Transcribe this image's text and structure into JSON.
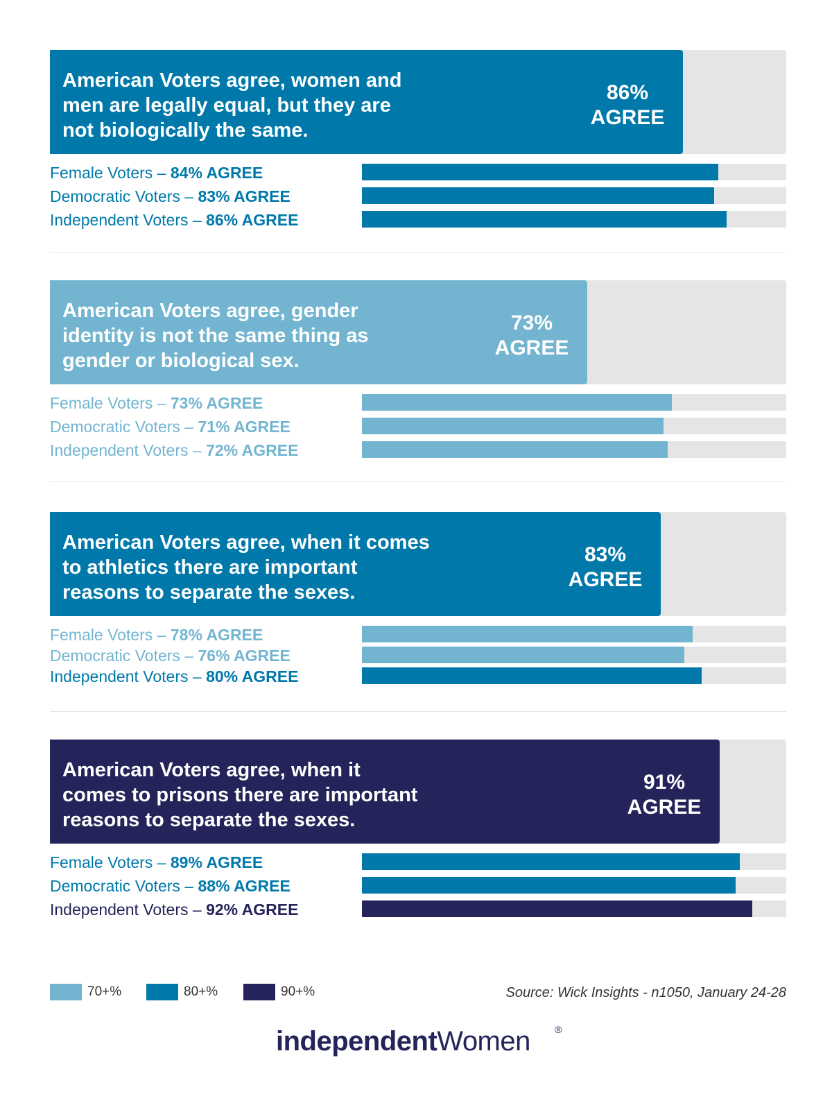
{
  "colors": {
    "70": "#73b5d0",
    "80": "#0079aa",
    "90": "#24245a",
    "track": "#e5e5e5"
  },
  "chart_data": {
    "type": "bar",
    "orientation": "horizontal",
    "xlim": [
      0,
      100
    ],
    "groups": [
      {
        "title": "American Voters agree, women and\nmen are legally equal, but they are\nnot biologically the same.",
        "value": 86,
        "label": "86%\nAGREE",
        "items": [
          {
            "name": "Female Voters",
            "sep": " – ",
            "pct_label": "84% AGREE",
            "value": 84
          },
          {
            "name": "Democratic Voters",
            "sep": " – ",
            "pct_label": "83% AGREE",
            "value": 83
          },
          {
            "name": "Independent Voters",
            "sep": " – ",
            "pct_label": "86% AGREE",
            "value": 86
          }
        ]
      },
      {
        "title": "American Voters agree, gender\nidentity is not the same thing as\ngender or biological sex.",
        "value": 73,
        "label": "73%\nAGREE",
        "items": [
          {
            "name": "Female Voters",
            "sep": " – ",
            "pct_label": "73% AGREE",
            "value": 73
          },
          {
            "name": "Democratic Voters",
            "sep": " – ",
            "pct_label": "71% AGREE",
            "value": 71
          },
          {
            "name": "Independent Voters",
            "sep": " – ",
            "pct_label": "72% AGREE",
            "value": 72
          }
        ]
      },
      {
        "title": "American Voters agree, when it comes\nto athletics there are important\nreasons to separate the sexes.",
        "value": 83,
        "label": "83%\nAGREE",
        "items": [
          {
            "name": "Female Voters",
            "sep": " – ",
            "pct_label": "78% AGREE",
            "value": 78
          },
          {
            "name": "Democratic Voters",
            "sep": " – ",
            "pct_label": "76% AGREE",
            "value": 76
          },
          {
            "name": "Independent Voters",
            "sep": " – ",
            "pct_label": "80% AGREE",
            "value": 80
          }
        ]
      },
      {
        "title": "American Voters agree, when it\ncomes to prisons there are important\nreasons to separate the sexes.",
        "value": 91,
        "label": "91%\nAGREE",
        "items": [
          {
            "name": "Female Voters",
            "sep": " – ",
            "pct_label": "89% AGREE",
            "value": 89
          },
          {
            "name": "Democratic Voters",
            "sep": " – ",
            "pct_label": "88% AGREE",
            "value": 88
          },
          {
            "name": "Independent Voters",
            "sep": " – ",
            "pct_label": "92% AGREE",
            "value": 92
          }
        ]
      }
    ],
    "legend": [
      {
        "label": "70+%",
        "tier": "70"
      },
      {
        "label": "80+%",
        "tier": "80"
      },
      {
        "label": "90+%",
        "tier": "90"
      }
    ],
    "source": "Source: Wick Insights - n1050, January 24-28"
  },
  "logo": {
    "part1": "independent",
    "part2": "Women",
    "mark": "®"
  }
}
